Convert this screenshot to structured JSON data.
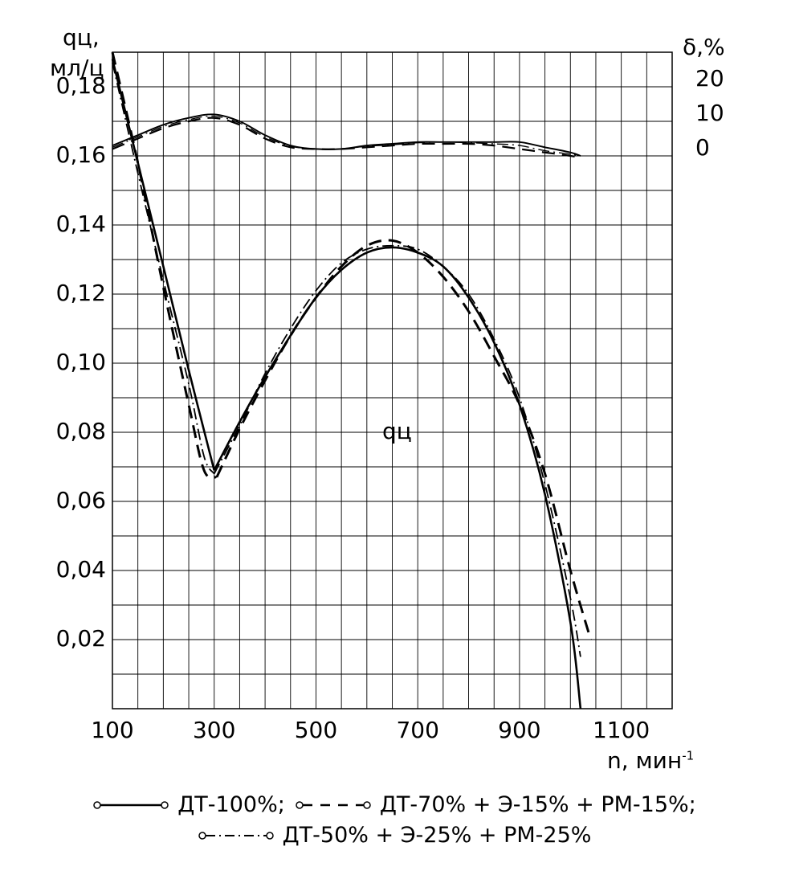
{
  "chart_data": {
    "type": "line",
    "ylabel": "qц,",
    "ylabel_unit": "мл/ц",
    "ylabel2": "δ,%",
    "xlabel": "n, мин",
    "xlabel_sup": "-1",
    "xlim": [
      100,
      1200
    ],
    "ylim": [
      0,
      0.19
    ],
    "y2lim": [
      0,
      20
    ],
    "grid": true,
    "x_ticks": [
      100,
      300,
      500,
      700,
      900,
      1100
    ],
    "x_tick_labels": [
      "100",
      "300",
      "500",
      "700",
      "900",
      "1100"
    ],
    "y_ticks": [
      0.02,
      0.04,
      0.06,
      0.08,
      0.1,
      0.12,
      0.14,
      0.16,
      0.18
    ],
    "y_tick_labels": [
      "0,02",
      "0,04",
      "0,06",
      "0,08",
      "0,10",
      "0,12",
      "0,14",
      "0,16",
      "0,18"
    ],
    "y2_ticks": [
      0,
      10,
      20
    ],
    "y2_tick_labels": [
      "0",
      "10",
      "20"
    ],
    "annotation": "qц",
    "legend_placement": "bottom",
    "series": [
      {
        "name": "ДТ-100%;",
        "style": "solid",
        "q": {
          "x": [
            100,
            150,
            200,
            250,
            300,
            350,
            400,
            450,
            500,
            550,
            600,
            650,
            700,
            750,
            800,
            850,
            900,
            950,
            1000,
            1020
          ],
          "y": [
            0.188,
            0.158,
            0.128,
            0.098,
            0.069,
            0.083,
            0.096,
            0.108,
            0.119,
            0.127,
            0.132,
            0.1335,
            0.132,
            0.128,
            0.119,
            0.106,
            0.088,
            0.062,
            0.025,
            0.0
          ]
        },
        "delta": {
          "x": [
            100,
            150,
            200,
            250,
            300,
            350,
            400,
            450,
            500,
            550,
            600,
            650,
            700,
            750,
            800,
            850,
            900,
            950,
            1000,
            1020
          ],
          "y": [
            1,
            4,
            7,
            9,
            10,
            8,
            4,
            1,
            0,
            0,
            1,
            1.5,
            2,
            2,
            2,
            2,
            2,
            0.5,
            -1,
            -2
          ]
        }
      },
      {
        "name": "ДТ-70% + Э-15% + РМ-15%;",
        "style": "dashed",
        "q": {
          "x": [
            100,
            150,
            200,
            250,
            280,
            305,
            350,
            400,
            450,
            500,
            550,
            600,
            650,
            700,
            750,
            800,
            850,
            900,
            950,
            1000,
            1040
          ],
          "y": [
            0.19,
            0.158,
            0.122,
            0.088,
            0.069,
            0.067,
            0.081,
            0.095,
            0.108,
            0.119,
            0.128,
            0.134,
            0.1355,
            0.132,
            0.125,
            0.115,
            0.102,
            0.088,
            0.068,
            0.04,
            0.02
          ]
        },
        "delta": {
          "x": [
            100,
            150,
            200,
            250,
            300,
            350,
            400,
            450,
            500,
            550,
            600,
            650,
            700,
            750,
            800,
            850,
            900,
            950,
            1000,
            1020
          ],
          "y": [
            0,
            3,
            6,
            8,
            9,
            7,
            3,
            0.5,
            0,
            0,
            0.5,
            1,
            1.5,
            1.5,
            1.5,
            1,
            0,
            -1,
            -2,
            -2.5
          ]
        }
      },
      {
        "name": "ДТ-50% + Э-25% + РМ-25%",
        "style": "dashdot",
        "q": {
          "x": [
            100,
            150,
            200,
            250,
            280,
            300,
            350,
            400,
            450,
            500,
            550,
            600,
            650,
            700,
            750,
            800,
            850,
            900,
            950,
            1000,
            1020
          ],
          "y": [
            0.187,
            0.155,
            0.124,
            0.094,
            0.073,
            0.068,
            0.082,
            0.097,
            0.11,
            0.121,
            0.129,
            0.133,
            0.134,
            0.133,
            0.128,
            0.12,
            0.107,
            0.09,
            0.065,
            0.032,
            0.015
          ]
        },
        "delta": {
          "x": [
            100,
            150,
            200,
            250,
            300,
            350,
            400,
            450,
            500,
            550,
            600,
            650,
            700,
            750,
            800,
            850,
            900,
            950,
            1000,
            1020
          ],
          "y": [
            0.5,
            3.5,
            6.5,
            8.5,
            9.5,
            7.5,
            3.5,
            0.8,
            0,
            0,
            0.8,
            1.2,
            1.8,
            2,
            1.8,
            1.5,
            1,
            -0.5,
            -1.5,
            -2
          ]
        }
      }
    ]
  }
}
